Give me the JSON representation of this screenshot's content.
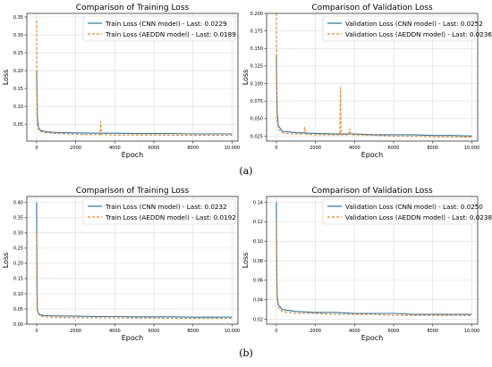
{
  "figure": {
    "captions": [
      "(a)",
      "(b)"
    ]
  },
  "colors": {
    "cnn": "#1f77b4",
    "aeddn": "#ff7f0e",
    "grid": "#dcdcdc",
    "axis": "#333333"
  },
  "chart_data": [
    {
      "type": "line",
      "title": "Comparison of Training Loss",
      "xlabel": "Epoch",
      "ylabel": "Loss",
      "xlim": [
        -500,
        10300
      ],
      "ylim": [
        0.003,
        0.36
      ],
      "xticks": [
        0,
        2000,
        4000,
        6000,
        8000,
        10000
      ],
      "xtick_labels": [
        "0",
        "2000",
        "4000",
        "6000",
        "8000",
        "10,000"
      ],
      "yticks": [
        0.05,
        0.1,
        0.15,
        0.2,
        0.25,
        0.3,
        0.35
      ],
      "ytick_labels": [
        "0.05",
        "0.10",
        "0.15",
        "0.20",
        "0.25",
        "0.30",
        "0.35"
      ],
      "grid": true,
      "legend_position": "top-right",
      "series": [
        {
          "name": "Train Loss (CNN model) - Last: 0.0229",
          "style": "solid",
          "x": [
            0,
            40,
            100,
            200,
            500,
            1000,
            2000,
            3000,
            4000,
            5000,
            6000,
            7000,
            8000,
            9000,
            10000
          ],
          "values": [
            0.2,
            0.07,
            0.04,
            0.033,
            0.029,
            0.027,
            0.026,
            0.025,
            0.025,
            0.024,
            0.024,
            0.024,
            0.023,
            0.023,
            0.0229
          ]
        },
        {
          "name": "Train Loss (AEDDN model) - Last: 0.0189",
          "style": "dashed",
          "x": [
            0,
            20,
            40,
            100,
            200,
            500,
            1000,
            2000,
            3000,
            3250,
            3280,
            3310,
            3400,
            4000,
            5000,
            6000,
            7000,
            8000,
            9000,
            10000
          ],
          "values": [
            0.34,
            0.12,
            0.05,
            0.036,
            0.03,
            0.026,
            0.024,
            0.022,
            0.021,
            0.021,
            0.058,
            0.022,
            0.021,
            0.02,
            0.02,
            0.02,
            0.019,
            0.019,
            0.019,
            0.0189
          ]
        }
      ]
    },
    {
      "type": "line",
      "title": "Comparison of Validation Loss",
      "xlabel": "Epoch",
      "ylabel": "Loss",
      "xlim": [
        -500,
        10300
      ],
      "ylim": [
        0.018,
        0.2
      ],
      "xticks": [
        0,
        2000,
        4000,
        6000,
        8000,
        10000
      ],
      "xtick_labels": [
        "0",
        "2000",
        "4000",
        "6000",
        "8000",
        "10,000"
      ],
      "yticks": [
        0.025,
        0.05,
        0.075,
        0.1,
        0.125,
        0.15,
        0.175,
        0.2
      ],
      "ytick_labels": [
        "0.025",
        "0.050",
        "0.075",
        "0.100",
        "0.125",
        "0.150",
        "0.175",
        "0.200"
      ],
      "grid": true,
      "legend_position": "top-right",
      "series": [
        {
          "name": "Validation Loss (CNN model) - Last: 0.0252",
          "style": "solid",
          "x": [
            0,
            40,
            100,
            300,
            1000,
            2000,
            3000,
            4000,
            5000,
            6000,
            7000,
            8000,
            9000,
            10000
          ],
          "values": [
            0.14,
            0.06,
            0.04,
            0.032,
            0.03,
            0.029,
            0.028,
            0.028,
            0.027,
            0.027,
            0.027,
            0.026,
            0.026,
            0.0252
          ]
        },
        {
          "name": "Validation Loss (AEDDN model) - Last: 0.0236",
          "style": "dashed",
          "x": [
            0,
            20,
            40,
            100,
            300,
            800,
            1400,
            1450,
            1500,
            2000,
            3250,
            3280,
            3310,
            3700,
            3750,
            3800,
            5000,
            6000,
            7000,
            8000,
            9000,
            10000
          ],
          "values": [
            0.2,
            0.09,
            0.05,
            0.035,
            0.03,
            0.028,
            0.028,
            0.038,
            0.028,
            0.027,
            0.027,
            0.095,
            0.027,
            0.027,
            0.036,
            0.027,
            0.026,
            0.025,
            0.025,
            0.024,
            0.024,
            0.0236
          ]
        }
      ]
    },
    {
      "type": "line",
      "title": "Comparison of Training Loss",
      "xlabel": "Epoch",
      "ylabel": "Loss",
      "xlim": [
        -500,
        10300
      ],
      "ylim": [
        0.0,
        0.42
      ],
      "xticks": [
        0,
        2000,
        4000,
        6000,
        8000,
        10000
      ],
      "xtick_labels": [
        "0",
        "2000",
        "4000",
        "6000",
        "8000",
        "10,000"
      ],
      "yticks": [
        0.0,
        0.05,
        0.1,
        0.15,
        0.2,
        0.25,
        0.3,
        0.35,
        0.4
      ],
      "ytick_labels": [
        "0.00",
        "0.05",
        "0.10",
        "0.15",
        "0.20",
        "0.25",
        "0.30",
        "0.35",
        "0.40"
      ],
      "grid": true,
      "legend_position": "top-right",
      "series": [
        {
          "name": "Train Loss (CNN model) - Last: 0.0232",
          "style": "solid",
          "x": [
            0,
            20,
            40,
            100,
            200,
            500,
            1000,
            2000,
            3000,
            4000,
            5000,
            6000,
            7000,
            8000,
            9000,
            10000
          ],
          "values": [
            0.4,
            0.12,
            0.05,
            0.035,
            0.03,
            0.028,
            0.027,
            0.026,
            0.025,
            0.025,
            0.024,
            0.024,
            0.024,
            0.023,
            0.023,
            0.0232
          ]
        },
        {
          "name": "Train Loss (AEDDN model) - Last: 0.0192",
          "style": "dashed",
          "x": [
            0,
            20,
            40,
            100,
            200,
            500,
            1000,
            2000,
            3000,
            4000,
            5000,
            6000,
            7000,
            8000,
            9000,
            10000
          ],
          "values": [
            0.3,
            0.1,
            0.045,
            0.032,
            0.027,
            0.024,
            0.022,
            0.021,
            0.021,
            0.02,
            0.02,
            0.02,
            0.019,
            0.019,
            0.019,
            0.0192
          ]
        }
      ]
    },
    {
      "type": "line",
      "title": "Comparison of Validation Loss",
      "xlabel": "Epoch",
      "ylabel": "Loss",
      "xlim": [
        -500,
        10300
      ],
      "ylim": [
        0.015,
        0.146
      ],
      "xticks": [
        0,
        2000,
        4000,
        6000,
        8000,
        10000
      ],
      "xtick_labels": [
        "0",
        "2000",
        "4000",
        "6000",
        "8000",
        "10,000"
      ],
      "yticks": [
        0.02,
        0.04,
        0.06,
        0.08,
        0.1,
        0.12,
        0.14
      ],
      "ytick_labels": [
        "0.02",
        "0.04",
        "0.06",
        "0.08",
        "0.10",
        "0.12",
        "0.14"
      ],
      "grid": true,
      "legend_position": "top-right",
      "series": [
        {
          "name": "Validation Loss (CNN model) - Last: 0.0250",
          "style": "solid",
          "x": [
            0,
            20,
            40,
            100,
            300,
            1000,
            2000,
            3000,
            4000,
            5000,
            6000,
            7000,
            8000,
            9000,
            10000
          ],
          "values": [
            0.14,
            0.07,
            0.045,
            0.035,
            0.03,
            0.028,
            0.027,
            0.027,
            0.026,
            0.026,
            0.026,
            0.025,
            0.025,
            0.025,
            0.025
          ]
        },
        {
          "name": "Validation Loss (AEDDN model) - Last: 0.0238",
          "style": "dashed",
          "x": [
            0,
            20,
            40,
            100,
            300,
            1000,
            2000,
            3000,
            4000,
            5000,
            6000,
            7000,
            8000,
            9000,
            10000
          ],
          "values": [
            0.12,
            0.06,
            0.04,
            0.032,
            0.028,
            0.026,
            0.026,
            0.025,
            0.025,
            0.025,
            0.024,
            0.024,
            0.024,
            0.024,
            0.0238
          ]
        }
      ]
    }
  ]
}
